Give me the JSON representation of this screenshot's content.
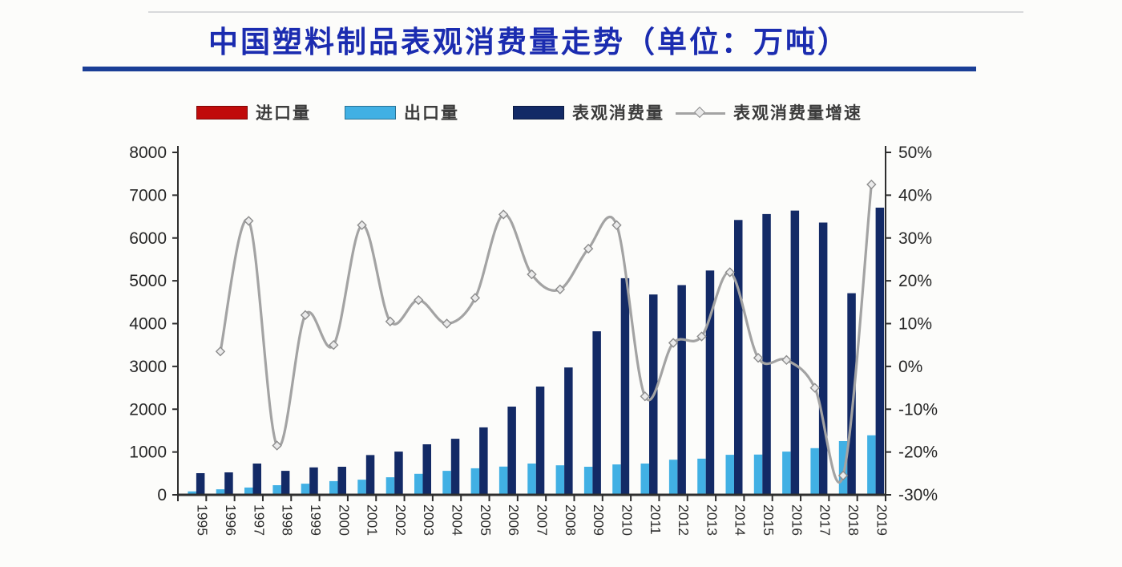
{
  "header": {
    "title": "中国塑料制品表观消费量走势（单位：万吨）",
    "title_color": "#1b2cb0",
    "underline_color": "#1a3e96"
  },
  "legend": {
    "text_color": "#3c3c3c",
    "items": [
      {
        "label": "进口量",
        "type": "bar",
        "color": "#c00b0b"
      },
      {
        "label": "出口量",
        "type": "bar",
        "color": "#41b0e4"
      },
      {
        "label": "表观消费量",
        "type": "bar",
        "color": "#132a66"
      },
      {
        "label": "表观消费量增速",
        "type": "line",
        "color": "#a3a3a3"
      }
    ]
  },
  "chart_data": {
    "type": "combo-bar-line",
    "title": "中国塑料制品表观消费量走势（单位：万吨）",
    "categories": [
      "1995",
      "1996",
      "1997",
      "1998",
      "1999",
      "2000",
      "2001",
      "2002",
      "2003",
      "2004",
      "2005",
      "2006",
      "2007",
      "2008",
      "2009",
      "2010",
      "2011",
      "2012",
      "2013",
      "2014",
      "2015",
      "2016",
      "2017",
      "2018",
      "2019"
    ],
    "bar_series": [
      {
        "name": "进口量",
        "axis": "left",
        "color": "#c00b0b",
        "values": [
          0,
          0,
          0,
          0,
          0,
          0,
          0,
          0,
          0,
          0,
          0,
          0,
          0,
          0,
          0,
          0,
          0,
          0,
          0,
          0,
          0,
          0,
          0,
          0,
          0
        ],
        "note": "red import bars are too small to be visible in the plot"
      },
      {
        "name": "出口量",
        "axis": "left",
        "color": "#41b0e4",
        "values": [
          80,
          130,
          170,
          225,
          260,
          320,
          355,
          410,
          490,
          560,
          620,
          660,
          730,
          690,
          655,
          710,
          730,
          820,
          845,
          935,
          940,
          1010,
          1090,
          1255,
          1390
        ]
      },
      {
        "name": "表观消费量",
        "axis": "left",
        "color": "#132a66",
        "values": [
          505,
          525,
          730,
          560,
          640,
          655,
          930,
          1010,
          1180,
          1310,
          1575,
          2060,
          2530,
          2975,
          3820,
          5060,
          4680,
          4900,
          5240,
          6420,
          6560,
          6640,
          6360,
          4710,
          6710
        ]
      }
    ],
    "line_series": [
      {
        "name": "表观消费量增速",
        "axis": "right",
        "color": "#a3a3a3",
        "marker": "diamond",
        "start_category_index": 1,
        "values_pct": [
          3.5,
          34,
          -18.5,
          12,
          5,
          33,
          10.5,
          15.5,
          10,
          16,
          35.5,
          21.5,
          18,
          27.5,
          33,
          -7,
          5.5,
          7,
          22,
          2,
          1.5,
          -5,
          -25.5,
          42.5
        ]
      }
    ],
    "left_axis": {
      "min": 0,
      "max": 8000,
      "step": 1000,
      "labels": [
        "0",
        "1000",
        "2000",
        "3000",
        "4000",
        "5000",
        "6000",
        "7000",
        "8000"
      ]
    },
    "right_axis": {
      "min": -30,
      "max": 50,
      "step": 10,
      "labels": [
        "-30%",
        "-20%",
        "-10%",
        "0%",
        "10%",
        "20%",
        "30%",
        "40%",
        "50%"
      ]
    },
    "grid": false,
    "legend_position": "top"
  }
}
